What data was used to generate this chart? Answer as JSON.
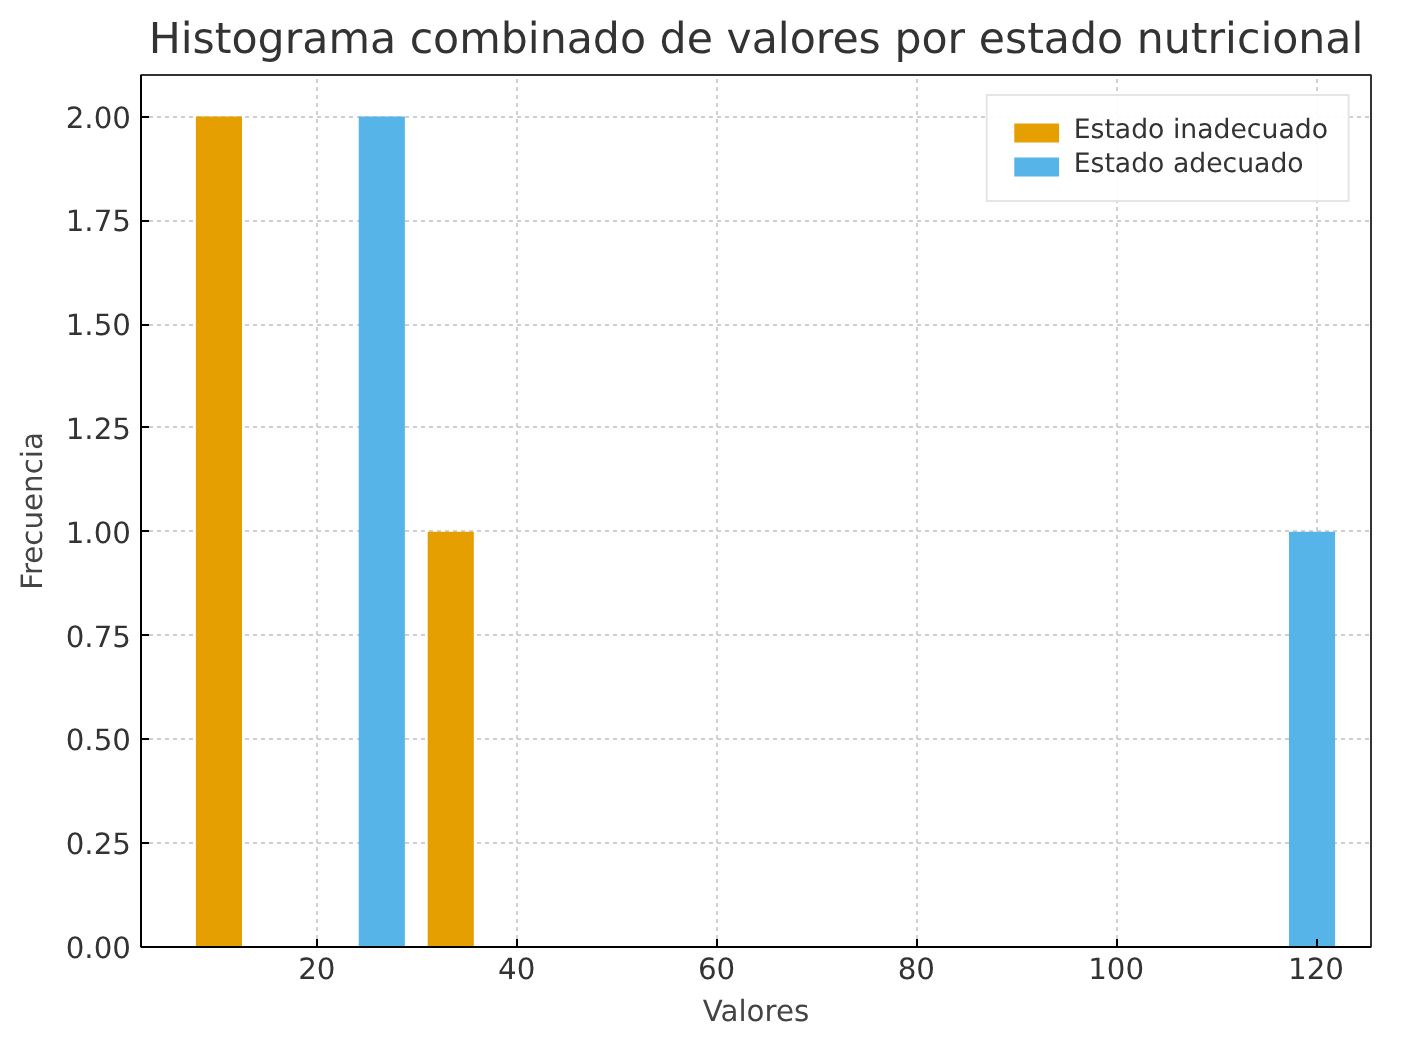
{
  "chart_data": {
    "type": "bar",
    "title": "Histograma combinado de valores por estado nutricional",
    "xlabel": "Valores",
    "ylabel": "Frecuencia",
    "series": [
      {
        "name": "Estado inadecuado",
        "color": "#e69f00",
        "x": [
          10.2,
          33.4
        ],
        "values": [
          2,
          1
        ]
      },
      {
        "name": "Estado adecuado",
        "color": "#56b4e9",
        "x": [
          26.5,
          119.6
        ],
        "values": [
          2,
          1
        ]
      }
    ],
    "xlim": [
      2.4,
      125.5
    ],
    "ylim": [
      0,
      2.1
    ],
    "xticks": [
      20,
      40,
      60,
      80,
      100,
      120
    ],
    "yticks": [
      {
        "value": 0,
        "label": "0.00"
      },
      {
        "value": 0.25,
        "label": "0.25"
      },
      {
        "value": 0.5,
        "label": "0.50"
      },
      {
        "value": 0.75,
        "label": "0.75"
      },
      {
        "value": 1,
        "label": "1.00"
      },
      {
        "value": 1.25,
        "label": "1.25"
      },
      {
        "value": 1.5,
        "label": "1.50"
      },
      {
        "value": 1.75,
        "label": "1.75"
      },
      {
        "value": 2,
        "label": "2.00"
      }
    ],
    "grid": true,
    "legend": "top right"
  }
}
